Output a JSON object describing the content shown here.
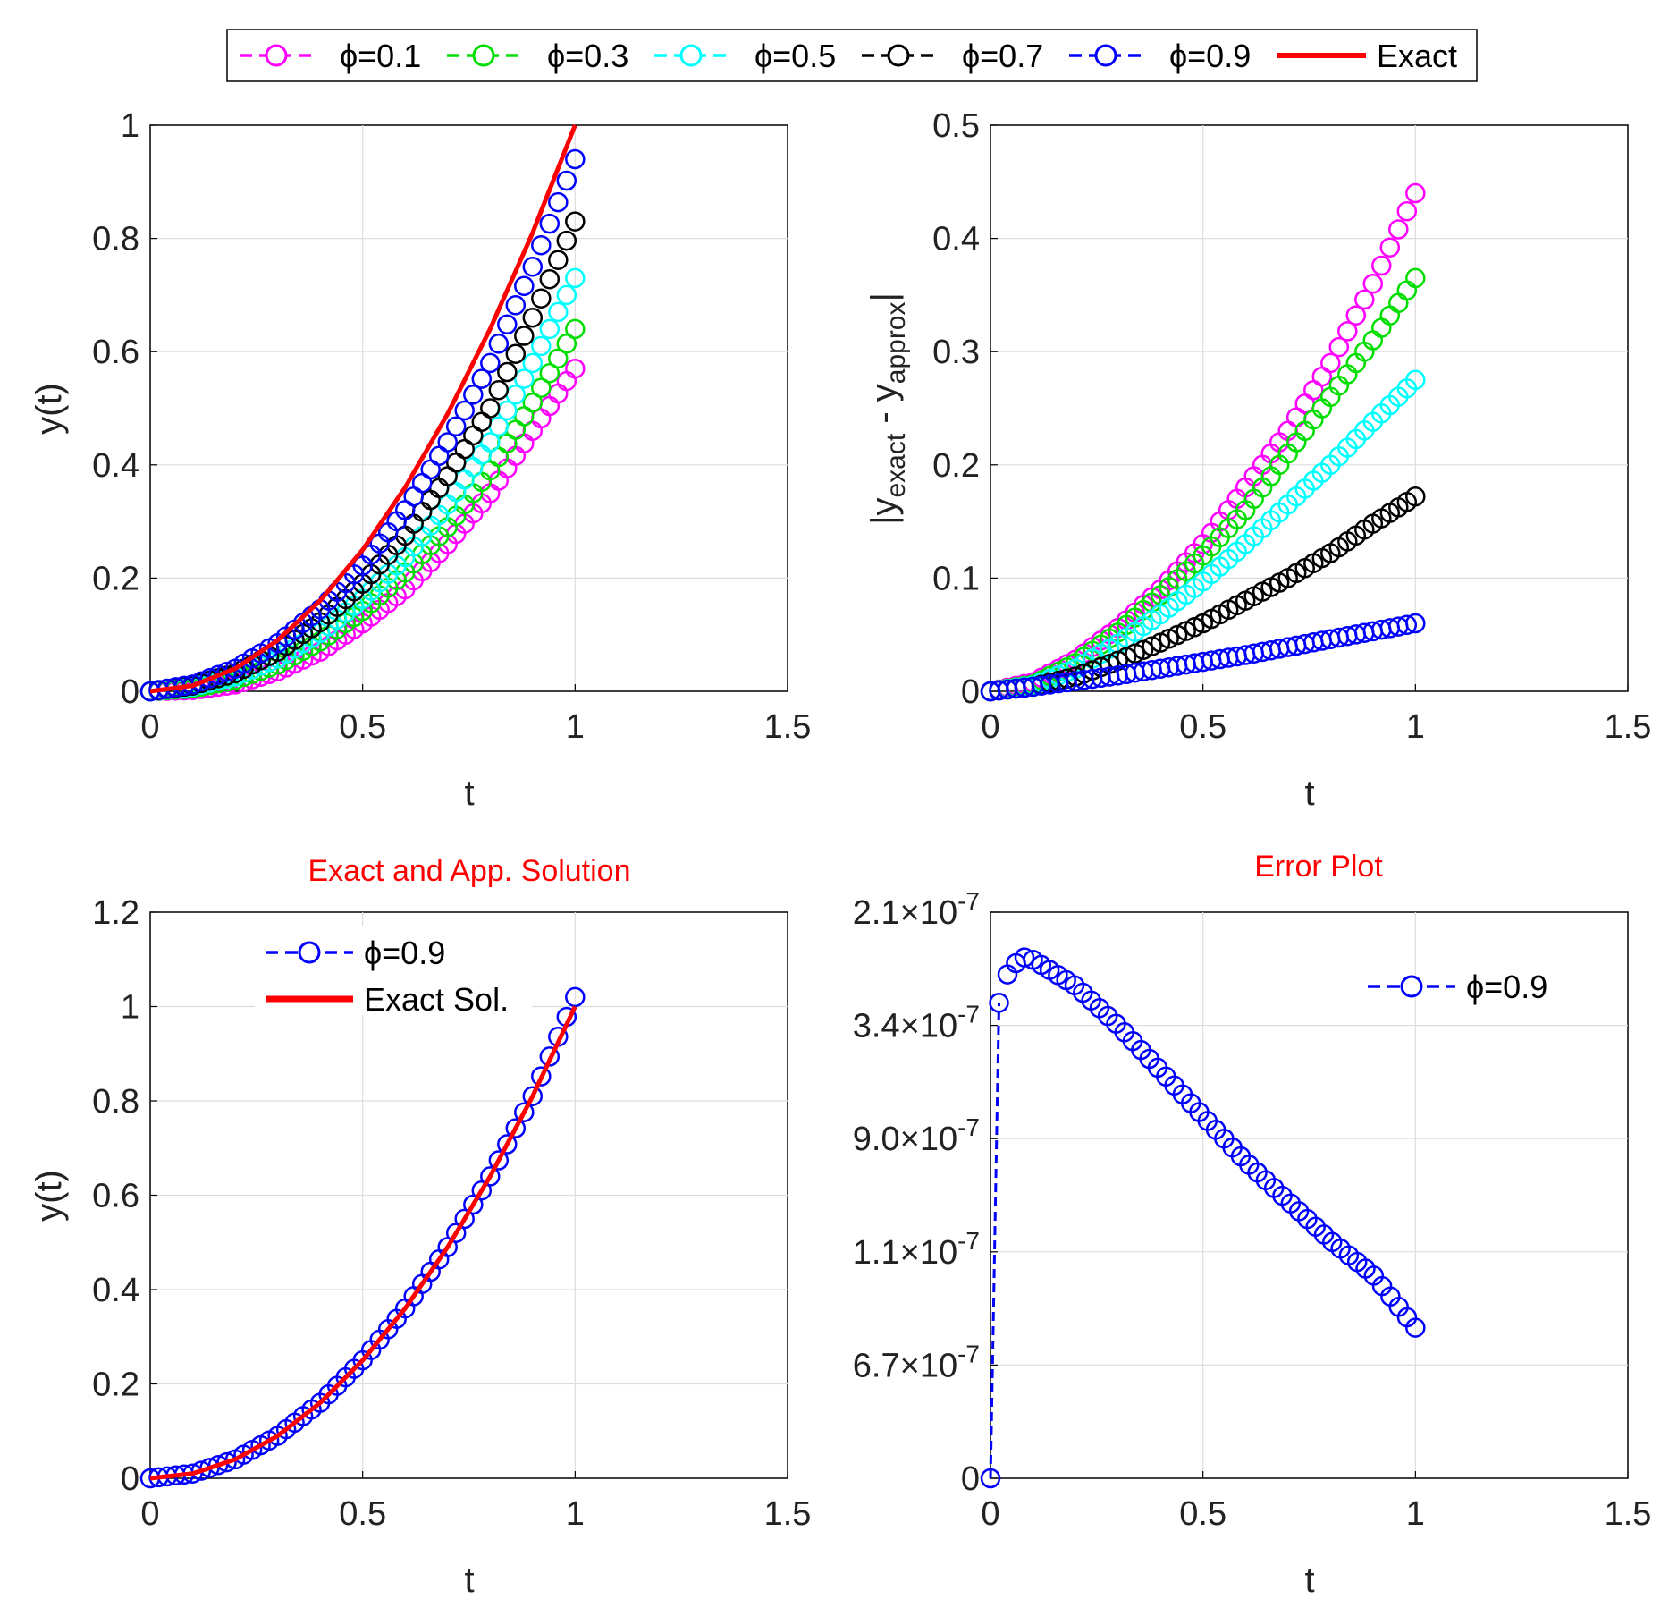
{
  "legend": {
    "entries": [
      {
        "label": "ϕ=0.1",
        "color": "#ff00ff",
        "style": "dashed-circle"
      },
      {
        "label": "ϕ=0.3",
        "color": "#00dd00",
        "style": "dashed-circle"
      },
      {
        "label": "ϕ=0.5",
        "color": "#00ffff",
        "style": "dashed-circle"
      },
      {
        "label": "ϕ=0.7",
        "color": "#000000",
        "style": "dashed-circle"
      },
      {
        "label": "ϕ=0.9",
        "color": "#0000ff",
        "style": "dashed-circle"
      },
      {
        "label": "Exact",
        "color": "#ff0000",
        "style": "solid"
      }
    ]
  },
  "chart_data": [
    {
      "id": "solutions",
      "type": "line",
      "title": "",
      "xlabel": "t",
      "ylabel": "y(t)",
      "xlim": [
        0,
        1.5
      ],
      "ylim": [
        0,
        1
      ],
      "xticks": [
        "0",
        "0.5",
        "1",
        "1.5"
      ],
      "yticks": [
        "0",
        "0.2",
        "0.4",
        "0.6",
        "0.8",
        "1"
      ],
      "grid": true,
      "x": [
        0,
        0.1,
        0.2,
        0.3,
        0.4,
        0.5,
        0.6,
        0.7,
        0.8,
        0.9,
        1.0
      ],
      "series": [
        {
          "name": "ϕ=0.1",
          "color": "#ff00ff",
          "values": [
            0,
            0.002,
            0.012,
            0.035,
            0.07,
            0.12,
            0.18,
            0.26,
            0.35,
            0.46,
            0.57
          ]
        },
        {
          "name": "ϕ=0.3",
          "color": "#00dd00",
          "values": [
            0,
            0.005,
            0.02,
            0.047,
            0.088,
            0.142,
            0.21,
            0.29,
            0.39,
            0.51,
            0.64
          ]
        },
        {
          "name": "ϕ=0.5",
          "color": "#00ffff",
          "values": [
            0,
            0.008,
            0.026,
            0.058,
            0.103,
            0.163,
            0.237,
            0.33,
            0.44,
            0.58,
            0.73
          ]
        },
        {
          "name": "ϕ=0.7",
          "color": "#000000",
          "values": [
            0,
            0.01,
            0.032,
            0.07,
            0.122,
            0.19,
            0.275,
            0.38,
            0.5,
            0.66,
            0.83
          ]
        },
        {
          "name": "ϕ=0.9",
          "color": "#0000ff",
          "values": [
            0,
            0.012,
            0.04,
            0.085,
            0.145,
            0.222,
            0.32,
            0.44,
            0.58,
            0.75,
            0.94
          ]
        },
        {
          "name": "Exact",
          "color": "#ff0000",
          "values": [
            0,
            0.01,
            0.04,
            0.09,
            0.16,
            0.25,
            0.36,
            0.49,
            0.64,
            0.81,
            1.0
          ]
        }
      ]
    },
    {
      "id": "abs-error",
      "type": "line",
      "title": "",
      "xlabel": "t",
      "ylabel": "|y_exact - y_approx|",
      "xlim": [
        0,
        1.5
      ],
      "ylim": [
        0,
        0.5
      ],
      "xticks": [
        "0",
        "0.5",
        "1",
        "1.5"
      ],
      "yticks": [
        "0",
        "0.1",
        "0.2",
        "0.3",
        "0.4",
        "0.5"
      ],
      "grid": true,
      "x": [
        0,
        0.1,
        0.2,
        0.3,
        0.4,
        0.5,
        0.6,
        0.7,
        0.8,
        0.9,
        1.0
      ],
      "series": [
        {
          "name": "ϕ=0.1",
          "color": "#ff00ff",
          "values": [
            0,
            0.008,
            0.028,
            0.056,
            0.09,
            0.13,
            0.18,
            0.23,
            0.29,
            0.36,
            0.44
          ]
        },
        {
          "name": "ϕ=0.3",
          "color": "#00dd00",
          "values": [
            0,
            0.006,
            0.025,
            0.052,
            0.085,
            0.12,
            0.16,
            0.21,
            0.26,
            0.31,
            0.365
          ]
        },
        {
          "name": "ϕ=0.5",
          "color": "#00ffff",
          "values": [
            0,
            0.005,
            0.02,
            0.042,
            0.068,
            0.097,
            0.13,
            0.165,
            0.2,
            0.238,
            0.275
          ]
        },
        {
          "name": "ϕ=0.7",
          "color": "#000000",
          "values": [
            0,
            0.004,
            0.013,
            0.027,
            0.043,
            0.06,
            0.08,
            0.1,
            0.122,
            0.148,
            0.172
          ]
        },
        {
          "name": "ϕ=0.9",
          "color": "#0000ff",
          "values": [
            0,
            0.004,
            0.009,
            0.014,
            0.02,
            0.026,
            0.032,
            0.039,
            0.046,
            0.053,
            0.06
          ]
        }
      ]
    },
    {
      "id": "exact-vs-app",
      "type": "line",
      "title": "Exact and App. Solution",
      "title_color": "#ff0000",
      "xlabel": "t",
      "ylabel": "y(t)",
      "xlim": [
        0,
        1.5
      ],
      "ylim": [
        0,
        1.2
      ],
      "xticks": [
        "0",
        "0.5",
        "1",
        "1.5"
      ],
      "yticks": [
        "0",
        "0.2",
        "0.4",
        "0.6",
        "0.8",
        "1",
        "1.2"
      ],
      "grid": true,
      "legend": [
        "ϕ=0.9",
        "Exact Sol."
      ],
      "x": [
        0,
        0.1,
        0.2,
        0.3,
        0.4,
        0.5,
        0.6,
        0.7,
        0.8,
        0.9,
        1.0
      ],
      "series": [
        {
          "name": "ϕ=0.9",
          "color": "#0000ff",
          "values": [
            0,
            0.01,
            0.04,
            0.09,
            0.16,
            0.25,
            0.36,
            0.49,
            0.64,
            0.81,
            1.02
          ]
        },
        {
          "name": "Exact Sol.",
          "color": "#ff0000",
          "values": [
            0,
            0.01,
            0.04,
            0.09,
            0.16,
            0.25,
            0.36,
            0.49,
            0.64,
            0.81,
            1.0
          ]
        }
      ]
    },
    {
      "id": "error-plot",
      "type": "line",
      "title": "Error Plot",
      "title_color": "#ff0000",
      "xlabel": "t",
      "ylabel": "",
      "xlim": [
        0,
        1.5
      ],
      "ylim": [
        0,
        5
      ],
      "xticks": [
        "0",
        "0.5",
        "1",
        "1.5"
      ],
      "yticks": [
        {
          "mant": "0",
          "exp": ""
        },
        {
          "mant": "6.7",
          "exp": "-7"
        },
        {
          "mant": "1.1",
          "exp": "-7"
        },
        {
          "mant": "9.0",
          "exp": "-7"
        },
        {
          "mant": "3.4",
          "exp": "-7"
        },
        {
          "mant": "2.1",
          "exp": "-7"
        }
      ],
      "grid": true,
      "legend": [
        "ϕ=0.9"
      ],
      "x": [
        0,
        0.02,
        0.04,
        0.06,
        0.08,
        0.1,
        0.2,
        0.3,
        0.4,
        0.5,
        0.6,
        0.7,
        0.8,
        0.9,
        1.0
      ],
      "series": [
        {
          "name": "ϕ=0.9",
          "color": "#0000ff",
          "values": [
            0,
            4.2,
            4.45,
            4.55,
            4.6,
            4.58,
            4.35,
            4.0,
            3.6,
            3.2,
            2.8,
            2.45,
            2.1,
            1.8,
            1.33
          ]
        }
      ]
    }
  ]
}
